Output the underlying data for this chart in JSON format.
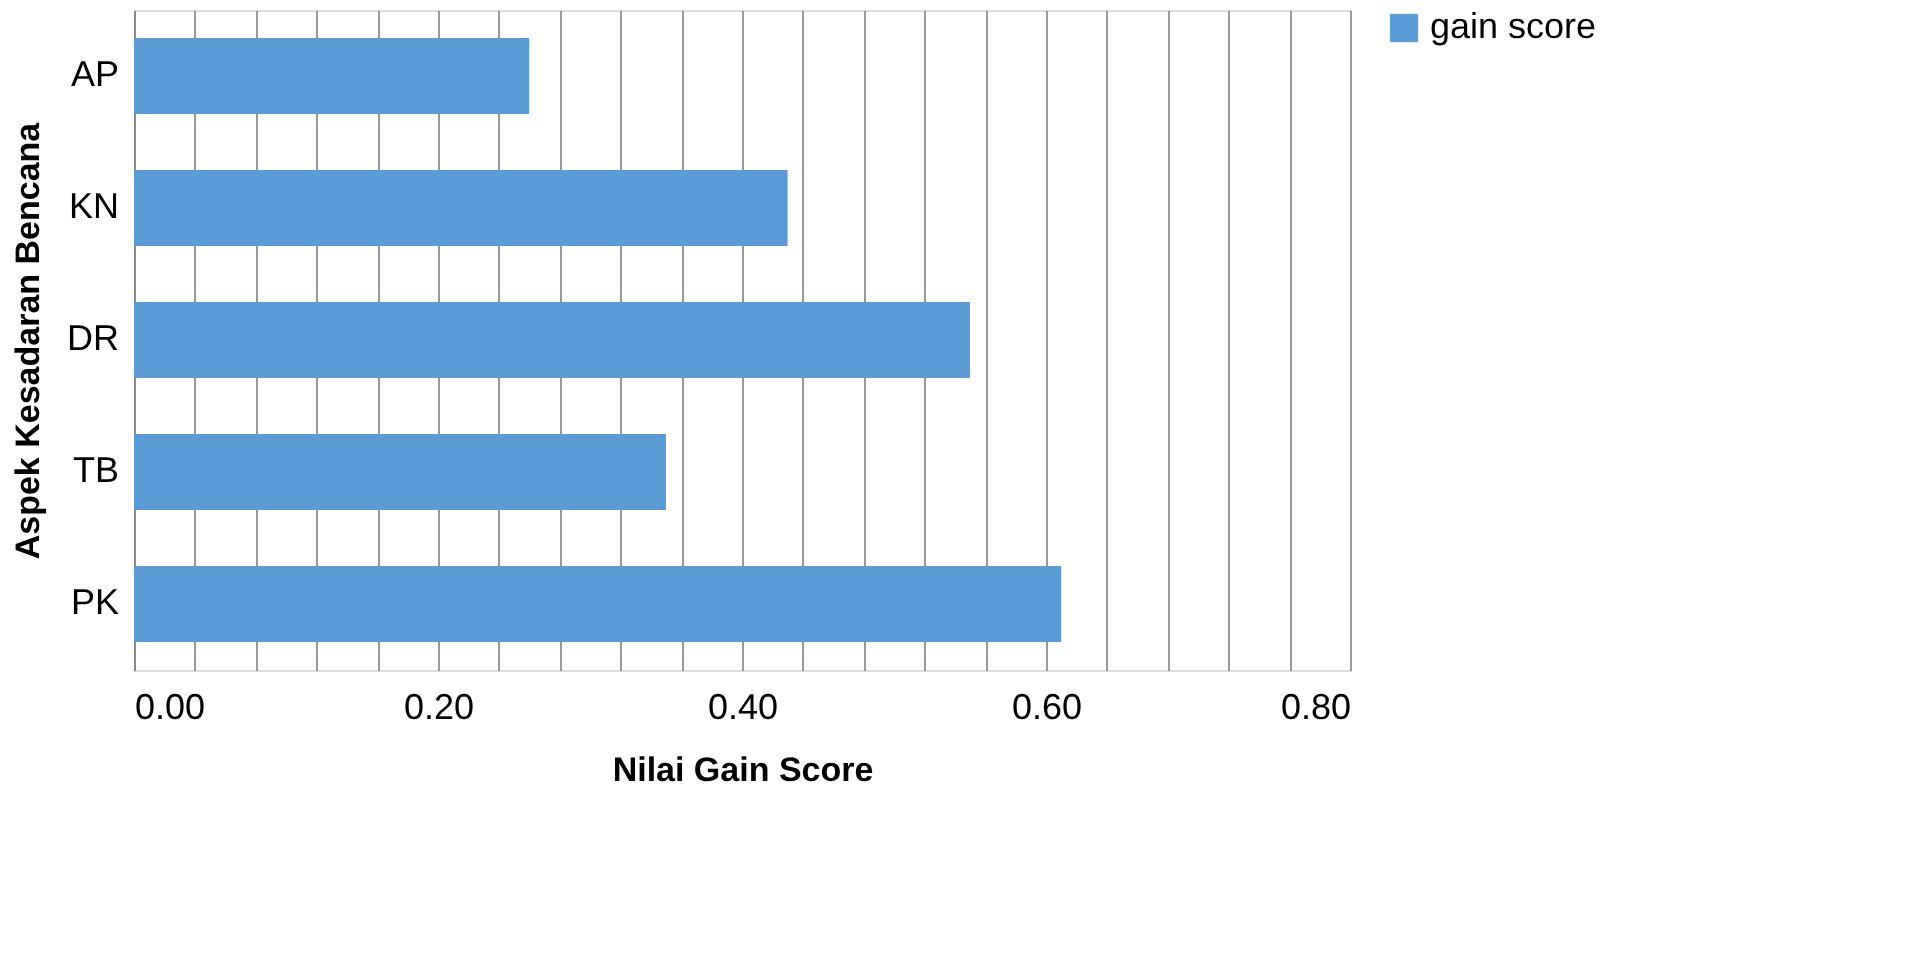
{
  "chart_data": {
    "type": "bar",
    "orientation": "horizontal",
    "xlabel": "Nilai Gain Score",
    "ylabel": "Aspek Kesadaran Bencana",
    "categories": [
      "AP",
      "KN",
      "DR",
      "TB",
      "PK"
    ],
    "series": [
      {
        "name": "gain score",
        "color": "#5b9bd5",
        "values": [
          0.26,
          0.43,
          0.55,
          0.35,
          0.61
        ]
      }
    ],
    "xlim": [
      0,
      0.8
    ],
    "xticks": [
      {
        "value": 0,
        "label": "0.00"
      },
      {
        "value": 0.04,
        "label": null
      },
      {
        "value": 0.08,
        "label": null
      },
      {
        "value": 0.12,
        "label": null
      },
      {
        "value": 0.16,
        "label": null
      },
      {
        "value": 0.2,
        "label": "0.20"
      },
      {
        "value": 0.24,
        "label": null
      },
      {
        "value": 0.28,
        "label": null
      },
      {
        "value": 0.32,
        "label": null
      },
      {
        "value": 0.36,
        "label": null
      },
      {
        "value": 0.4,
        "label": "0.40"
      },
      {
        "value": 0.44,
        "label": null
      },
      {
        "value": 0.48,
        "label": null
      },
      {
        "value": 0.52,
        "label": null
      },
      {
        "value": 0.56,
        "label": null
      },
      {
        "value": 0.6,
        "label": "0.60"
      },
      {
        "value": 0.64,
        "label": null
      },
      {
        "value": 0.68,
        "label": null
      },
      {
        "value": 0.72,
        "label": null
      },
      {
        "value": 0.76,
        "label": null
      },
      {
        "value": 0.8,
        "label": "0.80"
      }
    ],
    "grid": "x",
    "legend": "right"
  }
}
